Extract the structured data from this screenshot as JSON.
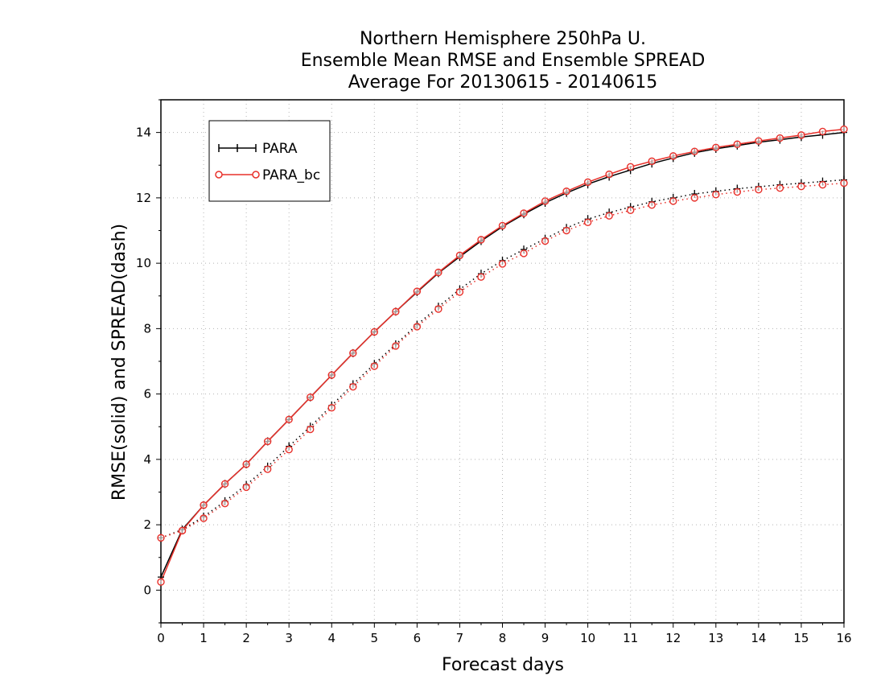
{
  "chart_data": {
    "type": "line",
    "title": [
      "Northern Hemisphere 250hPa U.",
      "Ensemble Mean RMSE and Ensemble SPREAD",
      "Average For 20130615 - 20140615"
    ],
    "xlabel": "Forecast days",
    "ylabel": "RMSE(solid) and SPREAD(dash)",
    "xlim": [
      0,
      16
    ],
    "ylim": [
      -1,
      15
    ],
    "xticks": [
      "0",
      "1",
      "2",
      "3",
      "4",
      "5",
      "6",
      "7",
      "8",
      "9",
      "10",
      "11",
      "12",
      "13",
      "14",
      "15",
      "16"
    ],
    "yticks": [
      "0",
      "2",
      "4",
      "6",
      "8",
      "10",
      "12",
      "14"
    ],
    "grid": true,
    "legend_position": "top-left",
    "x": [
      0,
      0.5,
      1,
      1.5,
      2,
      2.5,
      3,
      3.5,
      4,
      4.5,
      5,
      5.5,
      6,
      6.5,
      7,
      7.5,
      8,
      8.5,
      9,
      9.5,
      10,
      10.5,
      11,
      11.5,
      12,
      12.5,
      13,
      13.5,
      14,
      14.5,
      15,
      15.5,
      16
    ],
    "series": [
      {
        "name": "PARA",
        "style": "solid",
        "metric": "RMSE",
        "color": "#000000",
        "marker": "plus",
        "values": [
          0.4,
          1.85,
          2.6,
          3.25,
          3.85,
          4.55,
          5.22,
          5.9,
          6.58,
          7.25,
          7.9,
          8.52,
          9.12,
          9.7,
          10.2,
          10.68,
          11.12,
          11.5,
          11.85,
          12.15,
          12.42,
          12.65,
          12.85,
          13.05,
          13.22,
          13.38,
          13.5,
          13.6,
          13.7,
          13.78,
          13.86,
          13.93,
          14.0
        ]
      },
      {
        "name": "PARA_bc",
        "style": "solid",
        "metric": "RMSE",
        "color": "#e8302a",
        "marker": "circle",
        "values": [
          0.25,
          1.82,
          2.6,
          3.25,
          3.85,
          4.55,
          5.22,
          5.9,
          6.58,
          7.25,
          7.9,
          8.52,
          9.14,
          9.72,
          10.24,
          10.72,
          11.15,
          11.53,
          11.9,
          12.2,
          12.48,
          12.72,
          12.95,
          13.12,
          13.28,
          13.42,
          13.54,
          13.64,
          13.74,
          13.83,
          13.92,
          14.03,
          14.1
        ]
      },
      {
        "name": "PARA",
        "style": "dotted",
        "metric": "SPREAD",
        "color": "#000000",
        "marker": "plus",
        "values": [
          1.6,
          1.85,
          2.25,
          2.72,
          3.22,
          3.78,
          4.4,
          5.0,
          5.65,
          6.3,
          6.92,
          7.52,
          8.12,
          8.67,
          9.2,
          9.68,
          10.08,
          10.42,
          10.75,
          11.08,
          11.35,
          11.55,
          11.72,
          11.88,
          12.0,
          12.12,
          12.2,
          12.28,
          12.34,
          12.4,
          12.45,
          12.5,
          12.55
        ]
      },
      {
        "name": "PARA_bc",
        "style": "dotted",
        "metric": "SPREAD",
        "color": "#e8302a",
        "marker": "circle",
        "values": [
          1.6,
          1.82,
          2.2,
          2.65,
          3.15,
          3.7,
          4.3,
          4.92,
          5.58,
          6.22,
          6.85,
          7.47,
          8.06,
          8.6,
          9.12,
          9.58,
          9.98,
          10.3,
          10.68,
          11.0,
          11.25,
          11.45,
          11.62,
          11.78,
          11.9,
          12.0,
          12.1,
          12.18,
          12.25,
          12.3,
          12.35,
          12.4,
          12.45
        ]
      }
    ]
  }
}
